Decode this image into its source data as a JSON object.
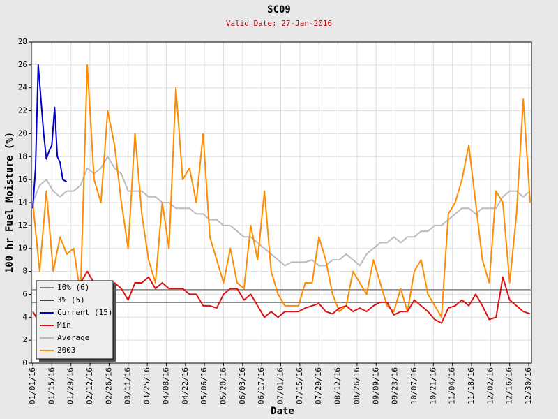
{
  "chart_data": {
    "type": "line",
    "title": "SC09",
    "subtitle": "Valid Date: 27-Jan-2016",
    "x_label": "Date",
    "y_label": "100 hr Fuel Moisture (%)",
    "xlim": [
      "01/01/16",
      "12/31/16"
    ],
    "xticks": [
      "01/01/16",
      "01/15/16",
      "01/29/16",
      "02/12/16",
      "02/26/16",
      "03/11/16",
      "03/25/16",
      "04/08/16",
      "04/22/16",
      "05/06/16",
      "05/20/16",
      "06/03/16",
      "06/17/16",
      "07/01/16",
      "07/15/16",
      "07/29/16",
      "08/12/16",
      "08/26/16",
      "09/09/16",
      "09/23/16",
      "10/07/16",
      "10/21/16",
      "11/04/16",
      "11/18/16",
      "12/02/16",
      "12/16/16",
      "12/30/16"
    ],
    "ylim": [
      0,
      28
    ],
    "yticks": [
      0,
      2,
      4,
      6,
      8,
      10,
      12,
      14,
      16,
      18,
      20,
      22,
      24,
      26,
      28
    ],
    "grid": true,
    "legend": "lower left",
    "reference_lines": [
      {
        "name": "10% (6)",
        "color": "#808080",
        "value": 6.4
      },
      {
        "name": "3% (5)",
        "color": "#404040",
        "value": 5.3
      }
    ],
    "x": [
      "01/01/16",
      "01/06/16",
      "01/11/16",
      "01/16/16",
      "01/21/16",
      "01/26/16",
      "01/31/16",
      "02/05/16",
      "02/10/16",
      "02/15/16",
      "02/20/16",
      "02/25/16",
      "03/01/16",
      "03/06/16",
      "03/11/16",
      "03/16/16",
      "03/21/16",
      "03/26/16",
      "03/31/16",
      "04/05/16",
      "04/10/16",
      "04/15/16",
      "04/20/16",
      "04/25/16",
      "04/30/16",
      "05/05/16",
      "05/10/16",
      "05/15/16",
      "05/20/16",
      "05/25/16",
      "05/30/16",
      "06/04/16",
      "06/09/16",
      "06/14/16",
      "06/19/16",
      "06/24/16",
      "06/29/16",
      "07/04/16",
      "07/09/16",
      "07/14/16",
      "07/19/16",
      "07/24/16",
      "07/29/16",
      "08/03/16",
      "08/08/16",
      "08/13/16",
      "08/18/16",
      "08/23/16",
      "08/28/16",
      "09/02/16",
      "09/07/16",
      "09/12/16",
      "09/17/16",
      "09/22/16",
      "09/27/16",
      "10/02/16",
      "10/07/16",
      "10/12/16",
      "10/17/16",
      "10/22/16",
      "10/27/16",
      "11/01/16",
      "11/06/16",
      "11/11/16",
      "11/16/16",
      "11/21/16",
      "11/26/16",
      "12/01/16",
      "12/06/16",
      "12/11/16",
      "12/16/16",
      "12/21/16",
      "12/26/16",
      "12/31/16"
    ],
    "series": [
      {
        "name": "Average",
        "color": "#bbbbbb",
        "values": [
          14,
          15.5,
          16,
          15,
          14.5,
          15,
          15,
          15.5,
          17,
          16.5,
          17,
          18,
          17,
          16.5,
          15,
          15,
          15,
          14.5,
          14.5,
          14,
          14,
          13.5,
          13.5,
          13.5,
          13,
          13,
          12.5,
          12.5,
          12,
          12,
          11.5,
          11,
          11,
          10.5,
          10,
          9.5,
          9,
          8.5,
          8.8,
          8.8,
          8.8,
          9,
          8.5,
          8.5,
          9,
          9,
          9.5,
          9,
          8.5,
          9.5,
          10,
          10.5,
          10.5,
          11,
          10.5,
          11,
          11,
          11.5,
          11.5,
          12,
          12,
          12.5,
          13,
          13.5,
          13.5,
          13,
          13.5,
          13.5,
          13.5,
          14.5,
          15,
          15,
          14.5,
          15
        ]
      },
      {
        "name": "2003",
        "color": "#ff8c00",
        "values": [
          14,
          8,
          15,
          8,
          11,
          9.5,
          10,
          6,
          26,
          16,
          14,
          22,
          19,
          14,
          10,
          20,
          13,
          9,
          7,
          14,
          10,
          24,
          16,
          17,
          14,
          20,
          11,
          9,
          7,
          10,
          7,
          6.5,
          12,
          9,
          15,
          8,
          6,
          5,
          5,
          5,
          7,
          7,
          11,
          9,
          6,
          4.5,
          5,
          8,
          7,
          6,
          9,
          7,
          5,
          4.5,
          6.5,
          4.5,
          8,
          9,
          6,
          5,
          4,
          13,
          14,
          16,
          19,
          14,
          9,
          7,
          15,
          14,
          7,
          13,
          23,
          14
        ]
      },
      {
        "name": "Min",
        "color": "#dd1111",
        "values": [
          4.5,
          3.5,
          4,
          4,
          4.5,
          5,
          6,
          7,
          8,
          7,
          5.5,
          6,
          7,
          6.5,
          5.5,
          7,
          7,
          7.5,
          6.5,
          7,
          6.5,
          6.5,
          6.5,
          6,
          6,
          5,
          5,
          4.8,
          6,
          6.5,
          6.5,
          5.5,
          6,
          5,
          4,
          4.5,
          4,
          4.5,
          4.5,
          4.5,
          4.8,
          5,
          5.2,
          4.5,
          4.3,
          4.8,
          5,
          4.5,
          4.8,
          4.5,
          5,
          5.3,
          5.3,
          4.2,
          4.5,
          4.5,
          5.5,
          5,
          4.5,
          3.8,
          3.5,
          4.8,
          5,
          5.5,
          5,
          6,
          5,
          3.8,
          4,
          7.5,
          5.5,
          5,
          4.5,
          4.3
        ]
      },
      {
        "name": "Current (15)",
        "color": "#0000cc",
        "x": [
          "01/01/16",
          "01/03/16",
          "01/05/16",
          "01/07/16",
          "01/09/16",
          "01/11/16",
          "01/13/16",
          "01/15/16",
          "01/17/16",
          "01/19/16",
          "01/21/16",
          "01/23/16",
          "01/26/16"
        ],
        "values": [
          13.5,
          17,
          26,
          23,
          20,
          17.8,
          18.5,
          19,
          22.3,
          18,
          17.5,
          16,
          15.8
        ]
      }
    ]
  }
}
